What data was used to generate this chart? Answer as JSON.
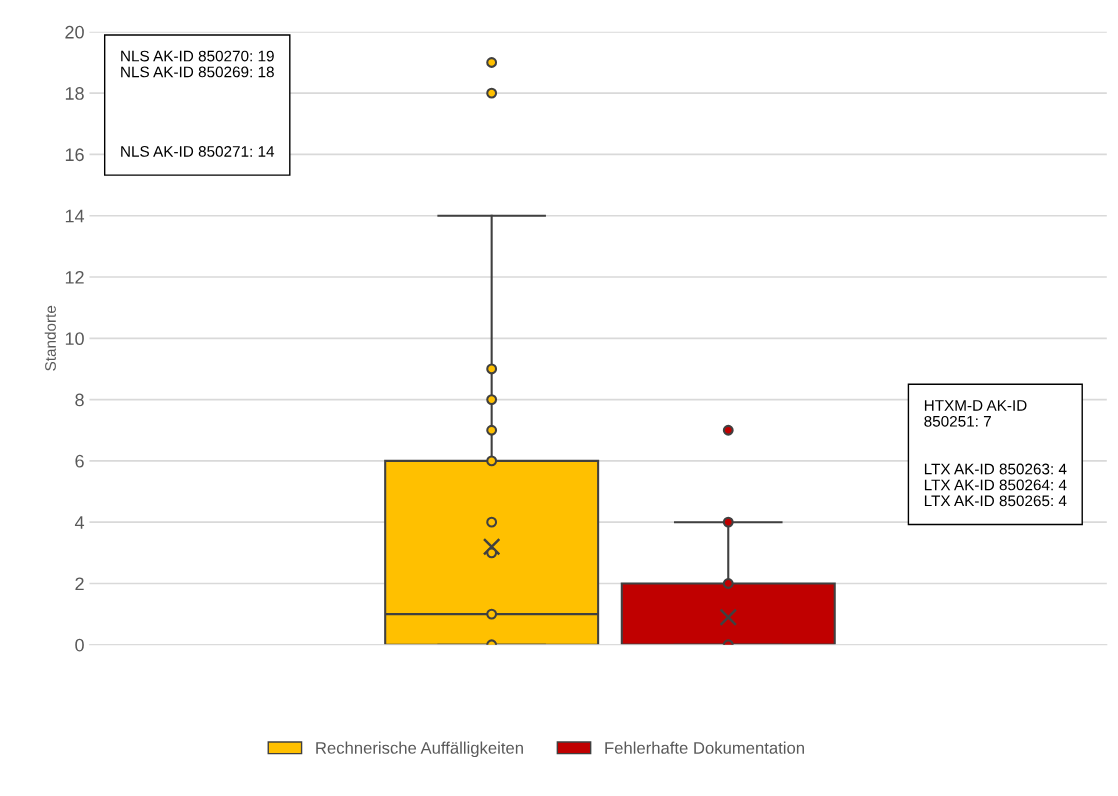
{
  "chart_data": {
    "type": "box",
    "ylabel": "Standorte",
    "categories": [
      null,
      null
    ],
    "ylim": [
      0,
      20
    ],
    "yticks": [
      0,
      2,
      4,
      6,
      8,
      10,
      12,
      14,
      16,
      18,
      20
    ],
    "grid": "y",
    "legend": "bottom",
    "marker": "circle",
    "series": [
      {
        "name": "Rechnerische Auffälligkeiten",
        "color": "#ffc000",
        "boxes": [
          {
            "low": 0,
            "q1": 0,
            "median": 1,
            "q3": 6,
            "high": 14,
            "mean": 3.2,
            "outliers": [
              0,
              1,
              3,
              4,
              6,
              7,
              8,
              9,
              18,
              19
            ]
          },
          null
        ]
      },
      {
        "name": "Fehlerhafte Dokumentation",
        "color": "#c00000",
        "boxes": [
          null,
          {
            "low": 0,
            "q1": 0,
            "median": 0,
            "q3": 2,
            "high": 4,
            "mean": 0.9,
            "outliers": [
              0,
              2,
              4,
              7
            ]
          }
        ]
      }
    ],
    "annotations": [
      "NLS AK-ID 850270: 19\nNLS AK-ID 850269: 18\n\n\n\n\nNLS AK-ID 850271: 14",
      "HTXM-D AK-ID\n850251: 7\n\n\nLTX AK-ID 850263: 4\nLTX AK-ID 850264: 4\nLTX AK-ID 850265: 4"
    ]
  }
}
